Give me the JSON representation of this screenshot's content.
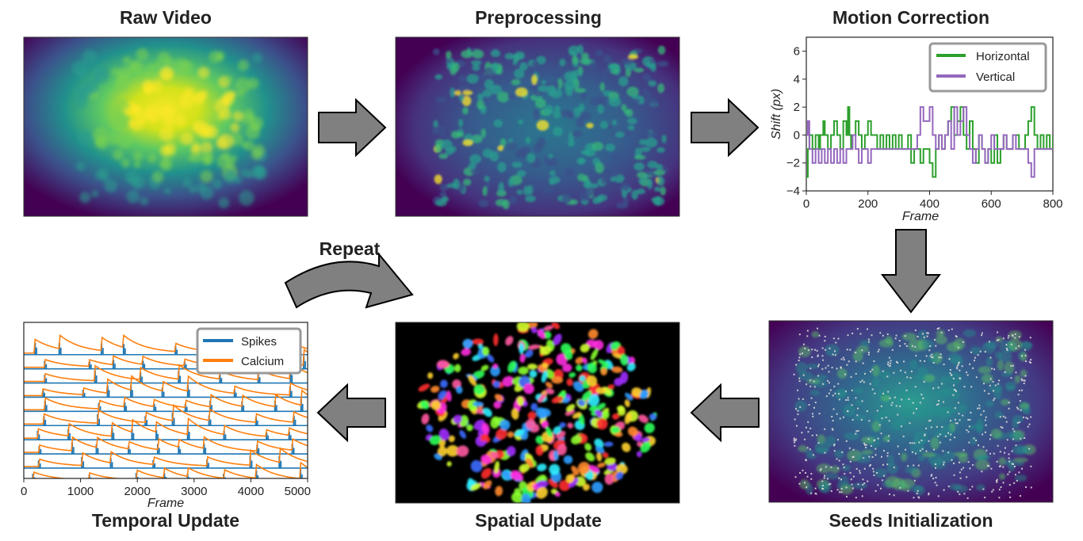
{
  "titles": {
    "raw_video": "Raw Video",
    "preprocessing": "Preprocessing",
    "motion_correction": "Motion Correction",
    "seeds_initialization": "Seeds Initialization",
    "spatial_update": "Spatial Update",
    "temporal_update": "Temporal Update",
    "repeat": "Repeat"
  },
  "colors": {
    "arrow_fill": "#808080",
    "arrow_stroke": "#000000",
    "viridis_dark": "#440154",
    "viridis_mid": "#21918c",
    "viridis_bright": "#fde725",
    "horizontal": "#2ca02c",
    "vertical": "#9467bd",
    "spikes": "#1f77b4",
    "calcium": "#ff7f0e"
  },
  "chart_data": [
    {
      "type": "line",
      "name": "motion-correction",
      "xlabel": "Frame",
      "ylabel": "Shift (px)",
      "xlim": [
        0,
        800
      ],
      "ylim": [
        -4,
        7
      ],
      "xticks": [
        "0",
        "200",
        "400",
        "600",
        "800"
      ],
      "yticks": [
        "−4",
        "−2",
        "0",
        "2",
        "4",
        "6"
      ],
      "legend": [
        "Horizontal",
        "Vertical"
      ],
      "legend_position": "top-right",
      "grid": false,
      "series": [
        {
          "name": "Horizontal",
          "color": "#2ca02c",
          "x": [
            0,
            5,
            10,
            20,
            30,
            40,
            45,
            55,
            60,
            70,
            80,
            90,
            100,
            110,
            120,
            130,
            135,
            140,
            145,
            150,
            160,
            170,
            180,
            190,
            200,
            210,
            220,
            230,
            240,
            250,
            260,
            270,
            280,
            290,
            300,
            310,
            320,
            330,
            340,
            350,
            360,
            370,
            380,
            390,
            400,
            410,
            420,
            430,
            440,
            450,
            460,
            470,
            480,
            490,
            500,
            510,
            520,
            530,
            540,
            550,
            560,
            570,
            580,
            590,
            600,
            610,
            620,
            630,
            640,
            650,
            660,
            670,
            680,
            690,
            700,
            710,
            720,
            730,
            740,
            750,
            760,
            770,
            780,
            790,
            800
          ],
          "y": [
            -3,
            -1,
            0,
            -1,
            0,
            -1,
            0,
            1,
            0,
            -1,
            0,
            1,
            0,
            -1,
            1,
            0,
            2,
            0,
            -1,
            0,
            1,
            0,
            -1,
            0,
            1,
            0,
            0,
            -1,
            0,
            -1,
            0,
            -1,
            0,
            -1,
            0,
            -1,
            -1,
            0,
            -2,
            -1,
            -1,
            -2,
            -1,
            -1,
            -2,
            -3,
            -1,
            0,
            -1,
            0,
            1,
            2,
            0,
            1,
            2,
            0,
            -1,
            1,
            -1,
            -2,
            0,
            -1,
            -2,
            -1,
            -2,
            0,
            -2,
            -1,
            0,
            -1,
            -1,
            0,
            0,
            -1,
            -1,
            0,
            1,
            2,
            0,
            -1,
            0,
            -1,
            0,
            -1,
            0
          ]
        },
        {
          "name": "Vertical",
          "color": "#9467bd",
          "x": [
            0,
            5,
            10,
            20,
            30,
            40,
            50,
            60,
            70,
            80,
            90,
            100,
            110,
            120,
            130,
            140,
            150,
            160,
            170,
            180,
            190,
            200,
            210,
            220,
            230,
            240,
            250,
            260,
            270,
            280,
            290,
            300,
            310,
            320,
            330,
            340,
            350,
            360,
            370,
            380,
            390,
            400,
            410,
            420,
            430,
            440,
            450,
            460,
            470,
            480,
            490,
            500,
            510,
            520,
            530,
            540,
            550,
            560,
            570,
            580,
            590,
            600,
            610,
            620,
            630,
            640,
            650,
            660,
            670,
            680,
            690,
            700,
            710,
            720,
            730,
            740,
            750,
            760,
            770,
            780,
            790,
            800
          ],
          "y": [
            0,
            1,
            -1,
            -2,
            -1,
            -2,
            -1,
            -2,
            -1,
            -2,
            -1,
            -2,
            -1,
            -2,
            -1,
            -1,
            0,
            -1,
            -2,
            -1,
            -1,
            -2,
            -1,
            -1,
            -1,
            -1,
            -1,
            -1,
            -1,
            -1,
            -1,
            -1,
            -1,
            -1,
            -1,
            -1,
            -1,
            0,
            2,
            1,
            1,
            2,
            0,
            -1,
            0,
            -1,
            0,
            1,
            -1,
            2,
            0,
            1,
            2,
            0,
            -1,
            -2,
            -1,
            0,
            -1,
            -2,
            -1,
            0,
            -1,
            -1,
            -1,
            0,
            -1,
            -1,
            0,
            -1,
            -1,
            -1,
            -1,
            -2,
            -3,
            -1,
            -1,
            -1,
            -1,
            -1,
            -1,
            -1
          ]
        }
      ]
    },
    {
      "type": "line",
      "name": "temporal-update",
      "xlabel": "Frame",
      "xlim": [
        0,
        5000
      ],
      "xticks": [
        "0",
        "1000",
        "2000",
        "3000",
        "4000",
        "5000"
      ],
      "legend": [
        "Spikes",
        "Calcium"
      ],
      "legend_position": "top-right",
      "grid": false,
      "series": [
        {
          "name": "Calcium",
          "color": "#ff7f0e",
          "traces": 10
        },
        {
          "name": "Spikes",
          "color": "#1f77b4",
          "traces": 10
        }
      ]
    }
  ]
}
